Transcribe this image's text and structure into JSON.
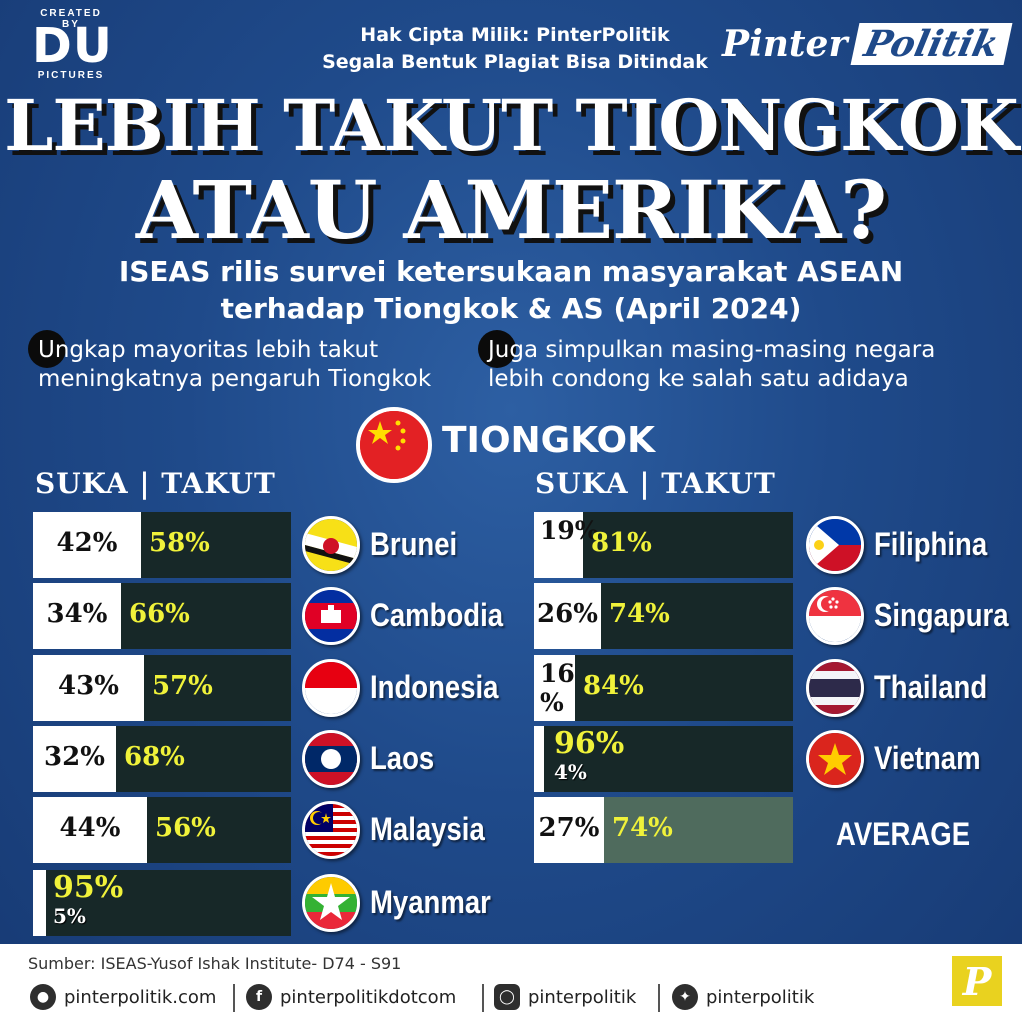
{
  "header": {
    "logo_top": "CREATED BY",
    "logo_main": "DU",
    "logo_bottom": "PICTURES",
    "copyright_line1": "Hak Cipta Milik: PinterPolitik",
    "copyright_line2": "Segala Bentuk Plagiat Bisa Ditindak",
    "brand_part1": "Pinter",
    "brand_part2": "Politik"
  },
  "title": {
    "line1": "LEBIH TAKUT TIONGKOK",
    "line2": "ATAU AMERIKA?",
    "subtitle_line1": "ISEAS rilis survei ketersukaan masyarakat ASEAN",
    "subtitle_line2": "terhadap Tiongkok & AS (April 2024)"
  },
  "notes": {
    "left_line1": "Ungkap mayoritas lebih takut",
    "left_line2": "meningkatnya pengaruh Tiongkok",
    "right_line1": "Juga simpulkan masing-masing negara",
    "right_line2": "lebih condong ke salah satu adidaya"
  },
  "section": {
    "label": "TIONGKOK",
    "column_header": "SUKA | TAKUT"
  },
  "colors": {
    "suka": "#ffffff",
    "takut": "#172828",
    "takut_text": "#f0f23a",
    "average_bar": "#4f6b5d",
    "background": "#1f4a8a"
  },
  "chart_data": {
    "type": "bar",
    "orientation": "horizontal-stacked",
    "series": [
      {
        "name": "SUKA",
        "values": [
          42,
          34,
          43,
          32,
          44,
          5,
          19,
          26,
          16,
          4
        ]
      },
      {
        "name": "TAKUT",
        "values": [
          58,
          66,
          57,
          68,
          56,
          95,
          81,
          74,
          84,
          96
        ]
      }
    ],
    "rows": [
      {
        "country": "Brunei",
        "flag": "brunei-flag-icon",
        "suka": 42,
        "takut": 58,
        "suka_label": "42%",
        "takut_label": "58%"
      },
      {
        "country": "Cambodia",
        "flag": "cambodia-flag-icon",
        "suka": 34,
        "takut": 66,
        "suka_label": "34%",
        "takut_label": "66%"
      },
      {
        "country": "Indonesia",
        "flag": "indonesia-flag-icon",
        "suka": 43,
        "takut": 57,
        "suka_label": "43%",
        "takut_label": "57%"
      },
      {
        "country": "Laos",
        "flag": "laos-flag-icon",
        "suka": 32,
        "takut": 68,
        "suka_label": "32%",
        "takut_label": "68%"
      },
      {
        "country": "Malaysia",
        "flag": "malaysia-flag-icon",
        "suka": 44,
        "takut": 56,
        "suka_label": "44%",
        "takut_label": "56%"
      },
      {
        "country": "Myanmar",
        "flag": "myanmar-flag-icon",
        "suka": 5,
        "takut": 95,
        "suka_label": "5%",
        "takut_label": "95%"
      },
      {
        "country": "Filiphina",
        "flag": "philippines-flag-icon",
        "suka": 19,
        "takut": 81,
        "suka_label": "19%",
        "takut_label": "81%"
      },
      {
        "country": "Singapura",
        "flag": "singapore-flag-icon",
        "suka": 26,
        "takut": 74,
        "suka_label": "26%",
        "takut_label": "74%"
      },
      {
        "country": "Thailand",
        "flag": "thailand-flag-icon",
        "suka": 16,
        "takut": 84,
        "suka_label": "16 %",
        "takut_label": "84%"
      },
      {
        "country": "Vietnam",
        "flag": "vietnam-flag-icon",
        "suka": 4,
        "takut": 96,
        "suka_label": "4%",
        "takut_label": "96%"
      }
    ],
    "average": {
      "label": "AVERAGE",
      "suka": 27,
      "takut": 74,
      "suka_label": "27%",
      "takut_label": "74%"
    }
  },
  "footer": {
    "source": "Sumber: ISEAS-Yusof Ishak Institute- D74 - S91",
    "social": [
      {
        "icon": "globe-icon",
        "text": "pinterpolitik.com"
      },
      {
        "icon": "facebook-icon",
        "text": "pinterpolitikdotcom"
      },
      {
        "icon": "instagram-icon",
        "text": "pinterpolitik"
      },
      {
        "icon": "twitter-icon",
        "text": "pinterpolitik"
      }
    ],
    "logo_letter": "P"
  }
}
